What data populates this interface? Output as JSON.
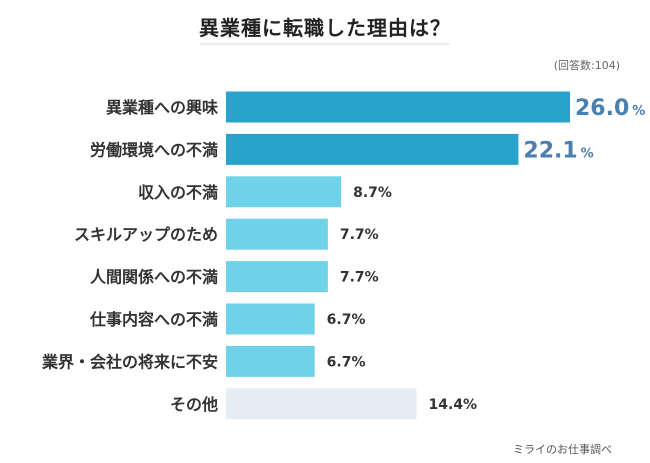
{
  "respondents_note": "(回答数:104)",
  "source": "ミライのお仕事調べ",
  "colors": {
    "top_bar": "#2aa3cc",
    "mid_bar": "#6fd2e8",
    "other_bar": "#e6edf4",
    "top_label": "#4a7fb0",
    "label_text": "#333333"
  },
  "chart_data": {
    "type": "bar",
    "orientation": "horizontal",
    "title": "異業種に転職した理由は？",
    "xlabel": "",
    "ylabel": "",
    "unit": "%",
    "xlim": [
      0,
      26.0
    ],
    "categories": [
      "異業種への興味",
      "労働環境への不満",
      "収入の不満",
      "スキルアップのため",
      "人間関係への不満",
      "仕事内容への不満",
      "業界・会社の将来に不安",
      "その他"
    ],
    "values": [
      26.0,
      22.1,
      8.7,
      7.7,
      7.7,
      6.7,
      6.7,
      14.4
    ],
    "value_labels": [
      "26.0",
      "22.1",
      "8.7%",
      "7.7%",
      "7.7%",
      "6.7%",
      "6.7%",
      "14.4%"
    ]
  }
}
